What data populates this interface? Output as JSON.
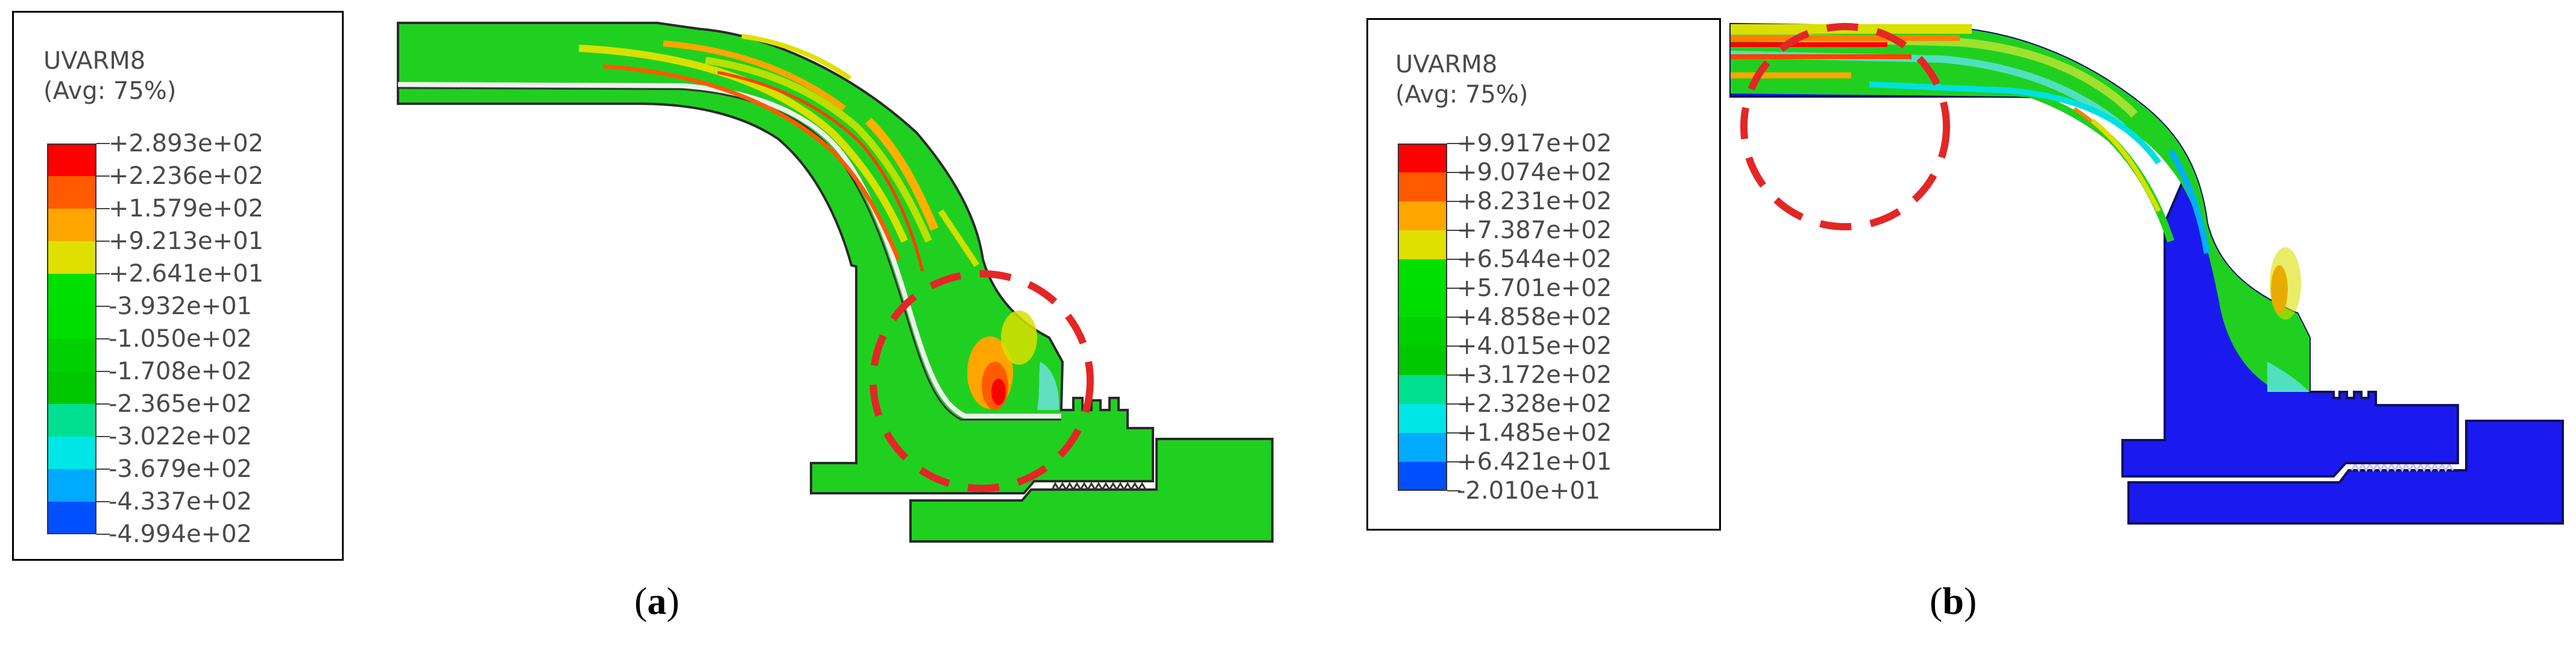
{
  "panels": [
    {
      "id": "a",
      "legend": {
        "title": "UVARM8",
        "subtitle": "(Avg: 75%)",
        "labels": [
          "+2.893e+02",
          "+2.236e+02",
          "+1.579e+02",
          "+9.213e+01",
          "+2.641e+01",
          "-3.932e+01",
          "-1.050e+02",
          "-1.708e+02",
          "-2.365e+02",
          "-3.022e+02",
          "-3.679e+02",
          "-4.337e+02",
          "-4.994e+02"
        ]
      },
      "caption": {
        "open": "(",
        "letter": "a",
        "close": ")"
      }
    },
    {
      "id": "b",
      "legend": {
        "title": "UVARM8",
        "subtitle": "(Avg: 75%)",
        "labels": [
          "+9.917e+02",
          "+9.074e+02",
          "+8.231e+02",
          "+7.387e+02",
          "+6.544e+02",
          "+5.701e+02",
          "+4.858e+02",
          "+4.015e+02",
          "+3.172e+02",
          "+2.328e+02",
          "+1.485e+02",
          "+6.421e+01",
          "-2.010e+01"
        ]
      },
      "caption": {
        "open": "(",
        "letter": "b",
        "close": ")"
      }
    }
  ],
  "contour_colors": [
    "#ff0000",
    "#ff5a00",
    "#ffa500",
    "#e0e000",
    "#00e000",
    "#00dd00",
    "#00d000",
    "#00c800",
    "#00e090",
    "#00e6e6",
    "#00aaff",
    "#0050ff",
    "#0000ff"
  ],
  "highlight_color": "#e32626"
}
